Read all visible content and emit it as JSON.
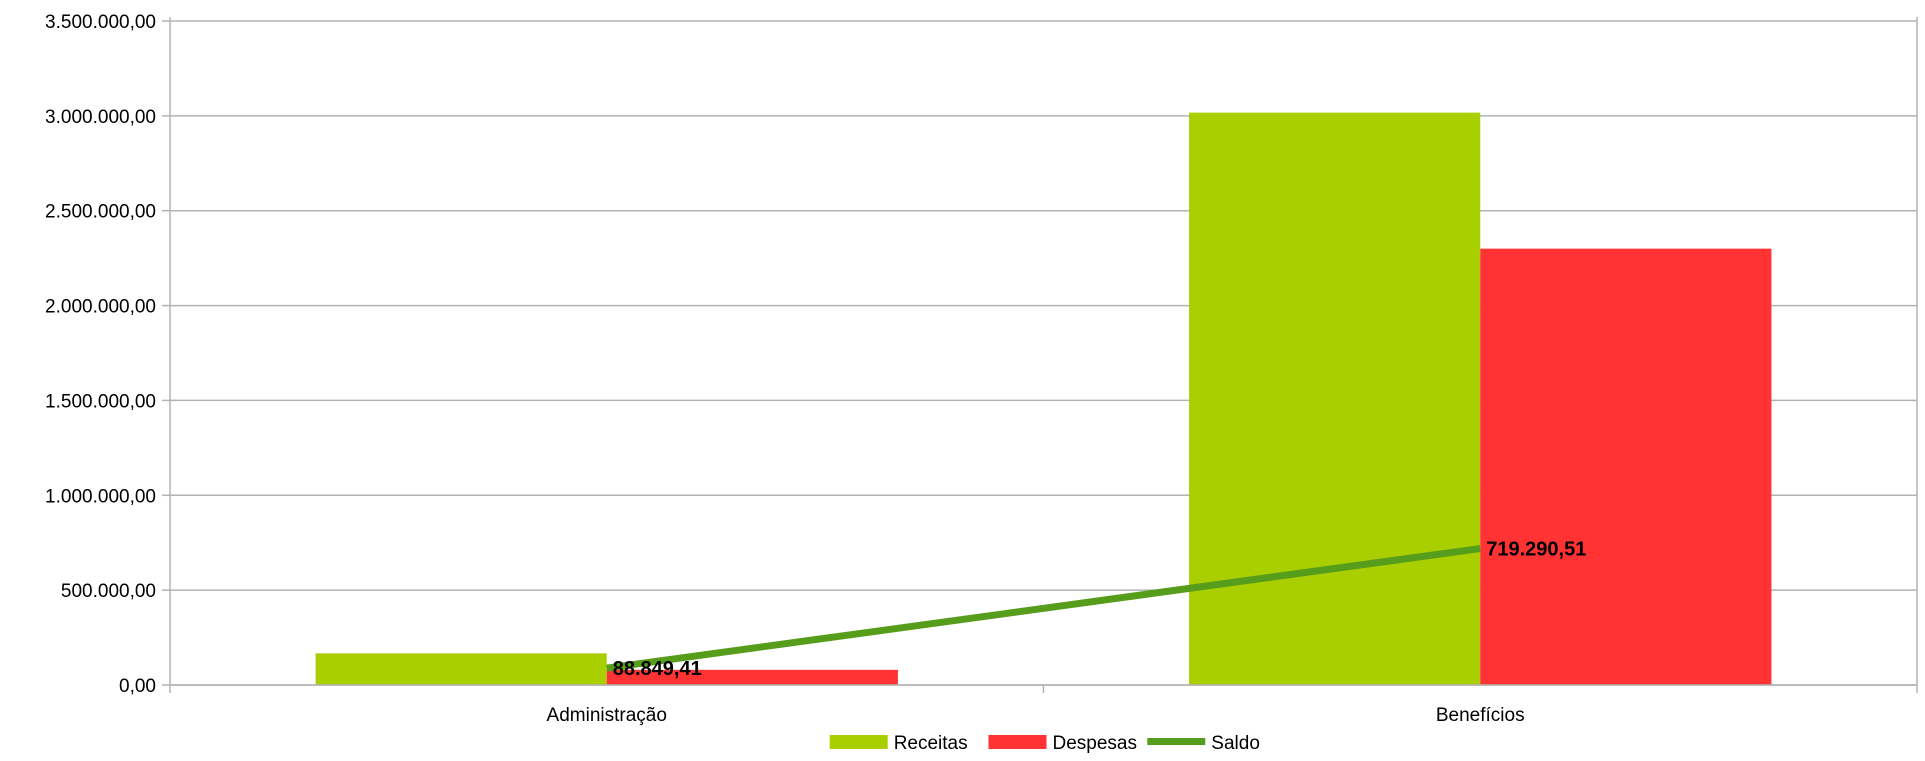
{
  "chart_data": {
    "type": "bar",
    "categories": [
      "Administração",
      "Benefícios"
    ],
    "series": [
      {
        "name": "Receitas",
        "kind": "bar",
        "color": "#aacf00",
        "values": [
          167000,
          3017000
        ]
      },
      {
        "name": "Despesas",
        "kind": "bar",
        "color": "#ff3333",
        "values": [
          80000,
          2300000
        ]
      },
      {
        "name": "Saldo",
        "kind": "line",
        "color": "#579d1c",
        "values": [
          88849.41,
          719290.51
        ],
        "labels": [
          "88.849,41",
          "719.290,51"
        ]
      }
    ],
    "ylim": [
      0,
      3500000
    ],
    "yticks": [
      0,
      500000,
      1000000,
      1500000,
      2000000,
      2500000,
      3000000,
      3500000
    ],
    "ytick_labels": [
      "0,00",
      "500.000,00",
      "1.000.000,00",
      "1.500.000,00",
      "2.000.000,00",
      "2.500.000,00",
      "3.000.000,00",
      "3.500.000,00"
    ],
    "grid": true,
    "legend": "bottom-center"
  }
}
